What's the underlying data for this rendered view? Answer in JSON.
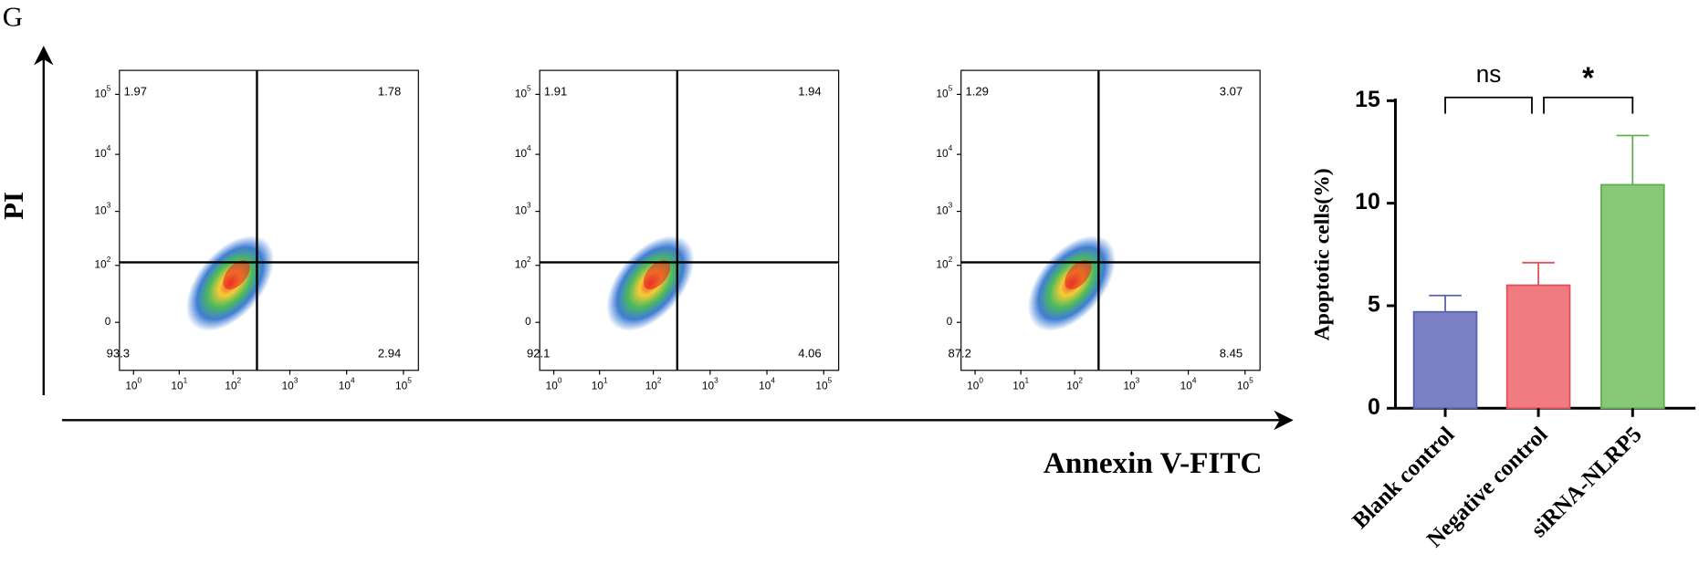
{
  "panel_label": "G",
  "flow_cytometry": {
    "y_axis_label": "PI",
    "x_axis_label": "Annexin V-FITC",
    "x_ticks": [
      {
        "base": "10",
        "exponent": "0"
      },
      {
        "base": "10",
        "exponent": "1"
      },
      {
        "base": "10",
        "exponent": "2"
      },
      {
        "base": "10",
        "exponent": "3"
      },
      {
        "base": "10",
        "exponent": "4"
      },
      {
        "base": "10",
        "exponent": "5"
      }
    ],
    "y_ticks": [
      {
        "base": "0"
      },
      {
        "base": "10",
        "exponent": "2"
      },
      {
        "base": "10",
        "exponent": "3"
      },
      {
        "base": "10",
        "exponent": "4"
      },
      {
        "base": "10",
        "exponent": "5"
      }
    ],
    "plots": [
      {
        "upper_left": 1.97,
        "upper_right": 1.78,
        "lower_left": 93.3,
        "lower_right": 2.94
      },
      {
        "upper_left": 1.91,
        "upper_right": 1.94,
        "lower_left": 92.1,
        "lower_right": 4.06
      },
      {
        "upper_left": 1.29,
        "upper_right": 3.07,
        "lower_left": 87.2,
        "lower_right": 8.45
      }
    ]
  },
  "chart_data": {
    "type": "bar",
    "ylabel": "Apoptotic cells(%)",
    "categories": [
      "Blank control",
      "Negative control",
      "siRNA-NLRP5"
    ],
    "values": [
      4.7,
      6.0,
      10.9
    ],
    "errors": [
      0.8,
      1.1,
      2.4
    ],
    "colors": [
      "#7b7fc4",
      "#f07b80",
      "#88c979"
    ],
    "edge_colors": [
      "#5a5fb0",
      "#e0525a",
      "#5fb04f"
    ],
    "ylim": [
      0,
      15
    ],
    "yticks": [
      0,
      5,
      10,
      15
    ],
    "annotations": [
      "ns",
      "*"
    ]
  }
}
